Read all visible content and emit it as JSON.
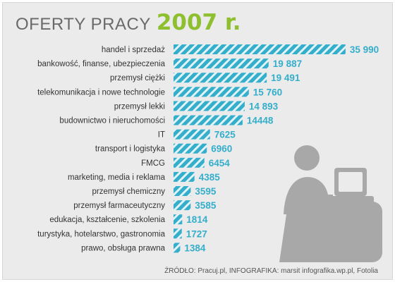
{
  "title": {
    "main": "OFERTY PRACY",
    "year": "2007 r."
  },
  "source": "ŹRÓDŁO: Pracuj.pl, INFOGRAFIKA: marsit infografika.wp.pl, Fotolia",
  "colors": {
    "bar": "#35aecb",
    "stripe": "#e2f3f8",
    "value": "#35aecb",
    "year": "#8dbf2e",
    "figure": "#a8a8a8"
  },
  "chart_data": {
    "type": "bar",
    "orientation": "horizontal",
    "categories": [
      "handel i sprzedaż",
      "bankowość, finanse, ubezpieczenia",
      "przemysł ciężki",
      "telekomunikacja i nowe technologie",
      "przemysł lekki",
      "budownictwo i nieruchomości",
      "IT",
      "transport i logistyka",
      "FMCG",
      "marketing, media i reklama",
      "przemysł chemiczny",
      "przemysł farmaceutyczny",
      "edukacja, kształcenie, szkolenia",
      "turystyka, hotelarstwo, gastronomia",
      "prawo, obsługa prawna"
    ],
    "values": [
      35990,
      19887,
      19491,
      15760,
      14893,
      14448,
      7625,
      6960,
      6454,
      4385,
      3595,
      3585,
      1814,
      1727,
      1384
    ],
    "value_labels": [
      "35 990",
      "19 887",
      "19 491",
      "15 760",
      "14 893",
      "14448",
      "7625",
      "6960",
      "6454",
      "4385",
      "3595",
      "3585",
      "1814",
      "1727",
      "1384"
    ]
  }
}
